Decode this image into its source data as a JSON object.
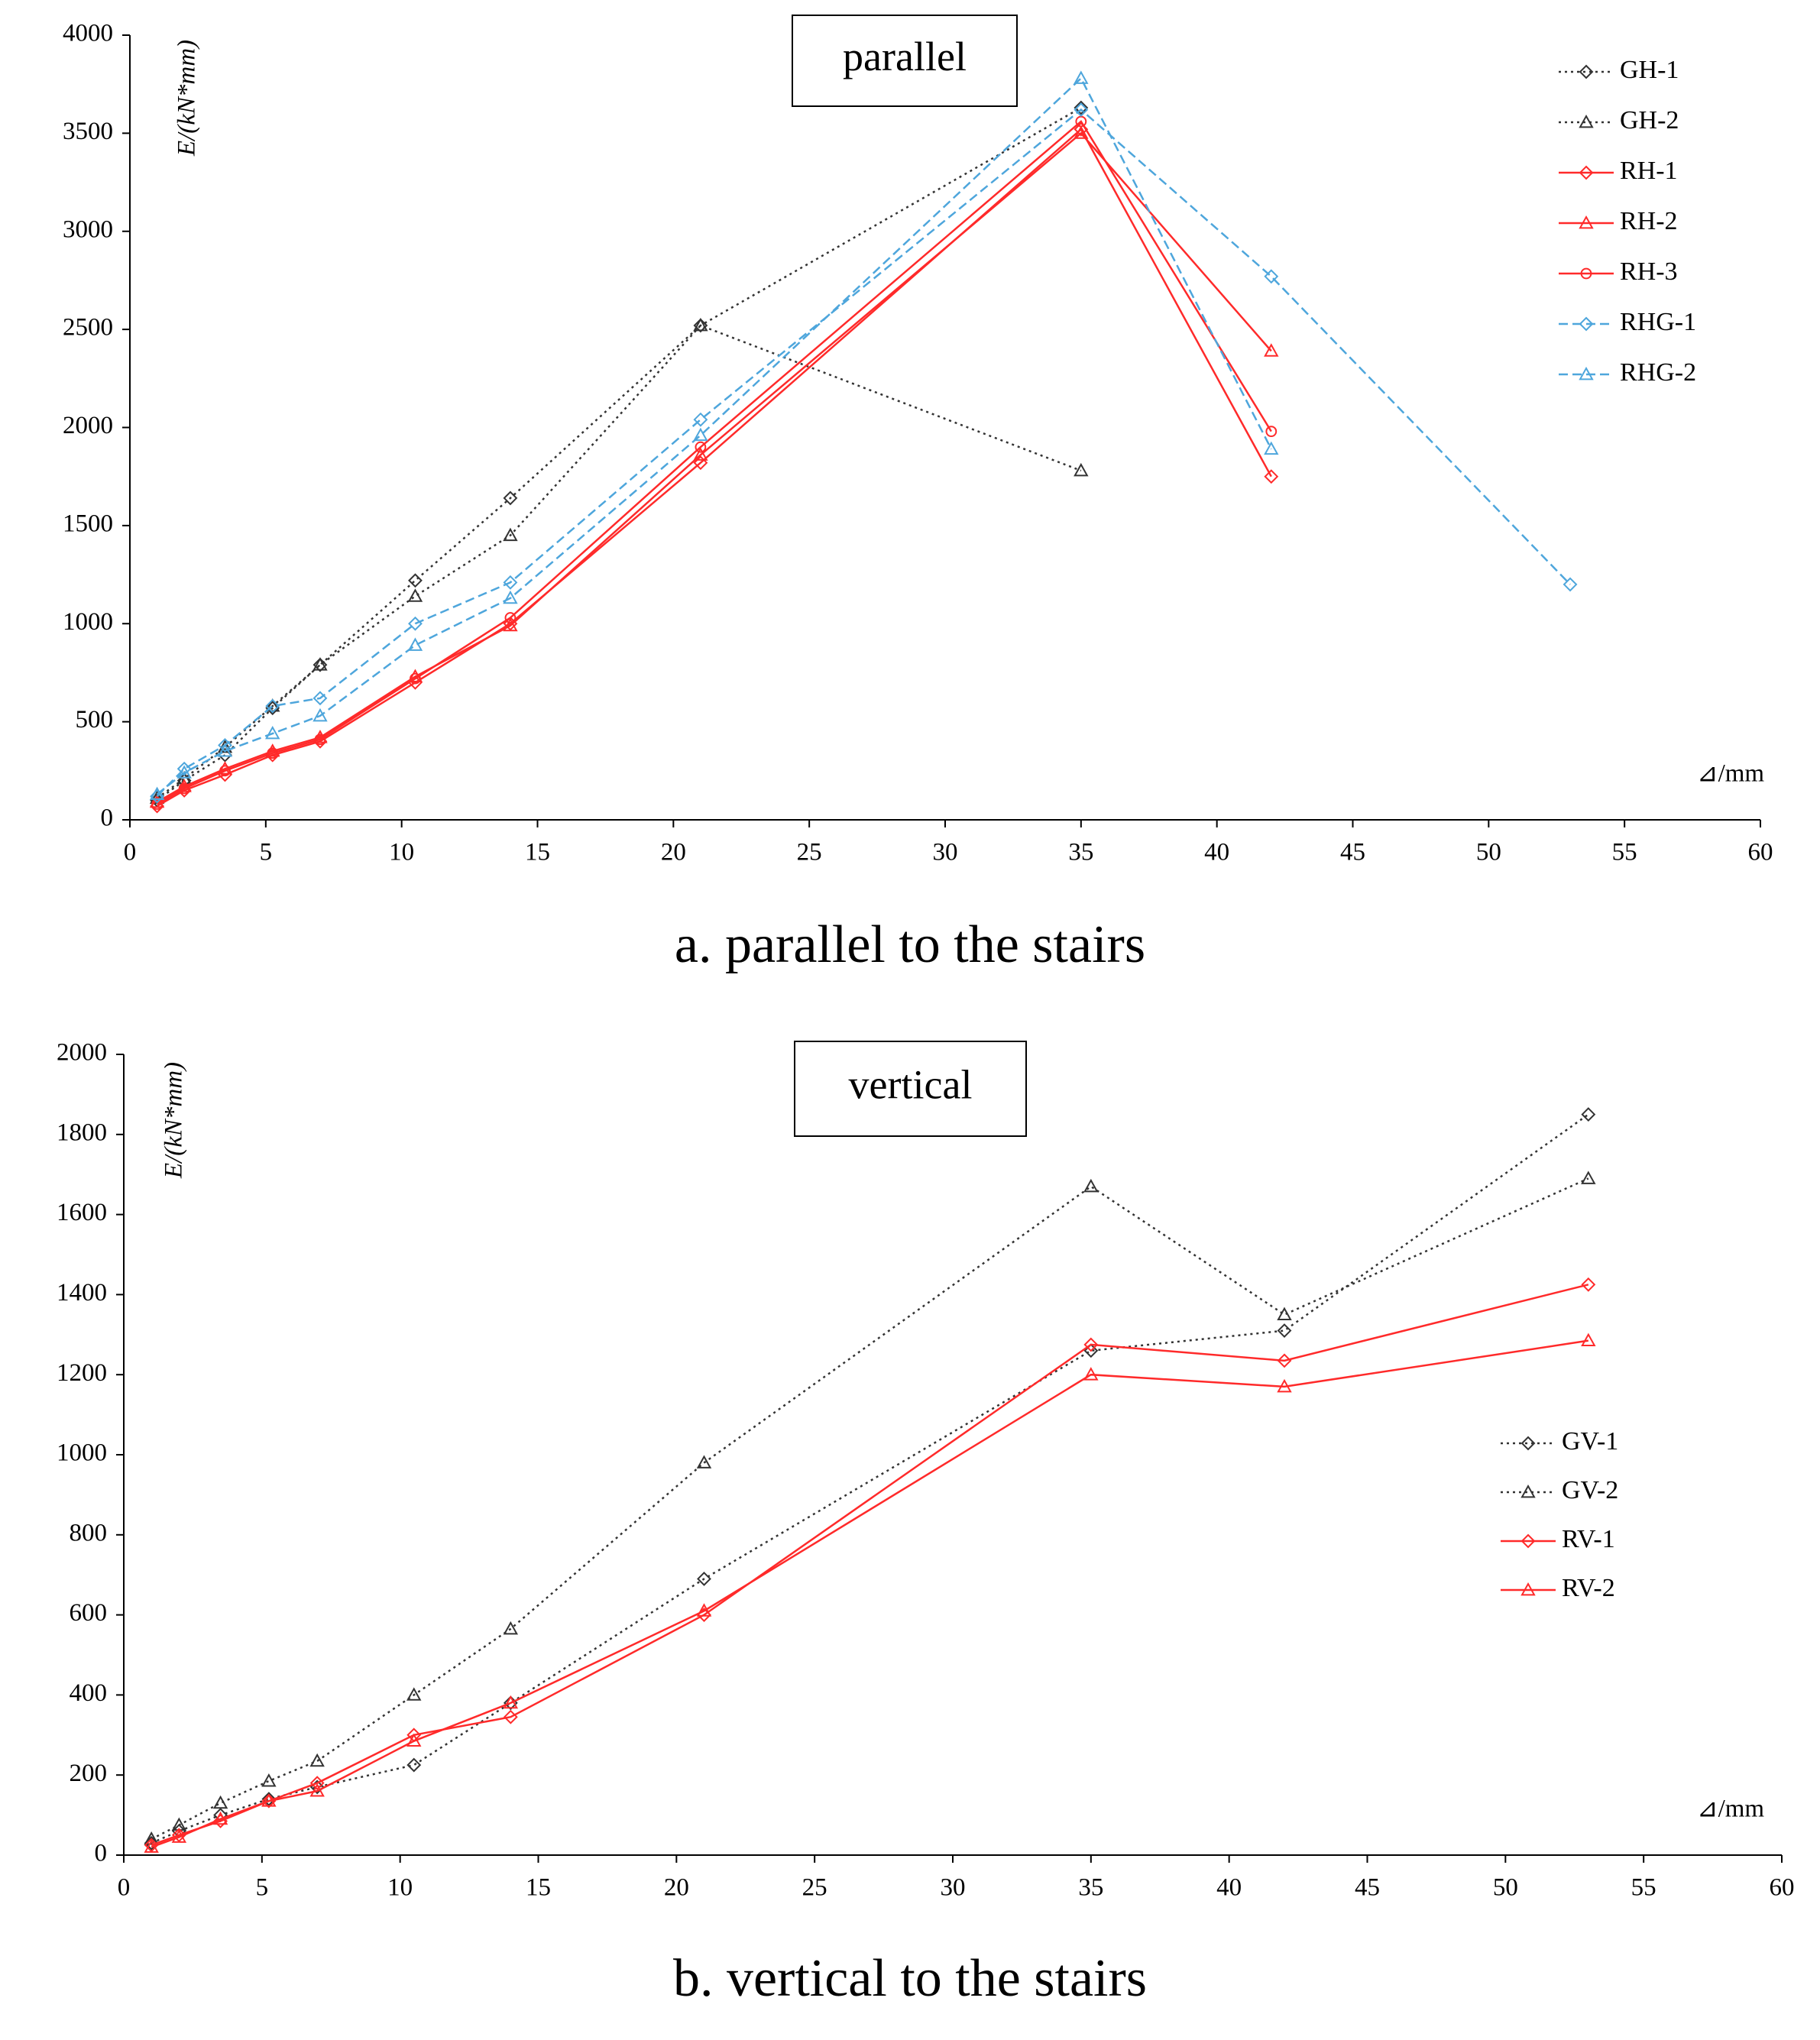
{
  "chart_data": [
    {
      "type": "line",
      "box_label": "parallel",
      "caption": "a. parallel to the stairs",
      "y_label": "E/(kN*mm)",
      "x_label": "⊿/mm",
      "x": [
        1,
        2,
        3.5,
        5.25,
        7,
        10.5,
        14,
        21,
        35,
        42,
        53
      ],
      "xlim": [
        0,
        60
      ],
      "xticks": [
        0,
        5,
        10,
        15,
        20,
        25,
        30,
        35,
        40,
        45,
        50,
        55,
        60
      ],
      "ylim": [
        0,
        4000
      ],
      "yticks": [
        0,
        500,
        1000,
        1500,
        2000,
        2500,
        3000,
        3500,
        4000
      ],
      "grid": false,
      "legend": "upper right",
      "series": [
        {
          "name": "GH-1",
          "color": "#333333",
          "marker": "diamond",
          "dash": "dotted",
          "values": [
            100,
            200,
            330,
            570,
            790,
            1220,
            1640,
            2520,
            3630,
            null,
            null
          ]
        },
        {
          "name": "GH-2",
          "color": "#333333",
          "marker": "triangle",
          "dash": "dotted",
          "values": [
            110,
            210,
            370,
            580,
            790,
            1140,
            1450,
            2520,
            1780,
            null,
            null
          ]
        },
        {
          "name": "RH-1",
          "color": "#ff2a2a",
          "marker": "diamond",
          "dash": "solid",
          "values": [
            70,
            150,
            230,
            330,
            400,
            700,
            1000,
            1820,
            3520,
            1750,
            null
          ]
        },
        {
          "name": "RH-2",
          "color": "#ff2a2a",
          "marker": "triangle",
          "dash": "solid",
          "values": [
            90,
            170,
            260,
            350,
            420,
            730,
            990,
            1860,
            3500,
            2390,
            null
          ]
        },
        {
          "name": "RH-3",
          "color": "#ff2a2a",
          "marker": "circle",
          "dash": "solid",
          "values": [
            80,
            160,
            250,
            340,
            410,
            720,
            1030,
            1900,
            3560,
            1980,
            null
          ]
        },
        {
          "name": "RHG-1",
          "color": "#4ea6dc",
          "marker": "diamond",
          "dash": "dashed",
          "values": [
            120,
            260,
            380,
            580,
            620,
            1000,
            1210,
            2040,
            3620,
            2770,
            1200
          ]
        },
        {
          "name": "RHG-2",
          "color": "#4ea6dc",
          "marker": "triangle",
          "dash": "dashed",
          "values": [
            130,
            240,
            350,
            440,
            530,
            890,
            1130,
            1960,
            3780,
            1890,
            null
          ]
        }
      ]
    },
    {
      "type": "line",
      "box_label": "vertical",
      "caption": "b. vertical to the stairs",
      "y_label": "E/(kN*mm)",
      "x_label": "⊿/mm",
      "x": [
        1,
        2,
        3.5,
        5.25,
        7,
        10.5,
        14,
        21,
        35,
        42,
        53
      ],
      "xlim": [
        0,
        60
      ],
      "xticks": [
        0,
        5,
        10,
        15,
        20,
        25,
        30,
        35,
        40,
        45,
        50,
        55,
        60
      ],
      "ylim": [
        0,
        2000
      ],
      "yticks": [
        0,
        200,
        400,
        600,
        800,
        1000,
        1200,
        1400,
        1600,
        1800,
        2000
      ],
      "grid": false,
      "legend": "center right",
      "series": [
        {
          "name": "GV-1",
          "color": "#333333",
          "marker": "diamond",
          "dash": "dotted",
          "values": [
            30,
            60,
            100,
            140,
            170,
            225,
            380,
            690,
            1260,
            1310,
            1850
          ]
        },
        {
          "name": "GV-2",
          "color": "#333333",
          "marker": "triangle",
          "dash": "dotted",
          "values": [
            40,
            75,
            130,
            185,
            235,
            400,
            565,
            980,
            1670,
            1350,
            1690
          ]
        },
        {
          "name": "RV-1",
          "color": "#ff2a2a",
          "marker": "diamond",
          "dash": "solid",
          "values": [
            25,
            50,
            85,
            135,
            180,
            300,
            345,
            600,
            1275,
            1235,
            1425
          ]
        },
        {
          "name": "RV-2",
          "color": "#ff2a2a",
          "marker": "triangle",
          "dash": "solid",
          "values": [
            20,
            45,
            90,
            135,
            160,
            285,
            380,
            610,
            1200,
            1170,
            1285
          ]
        }
      ]
    }
  ]
}
